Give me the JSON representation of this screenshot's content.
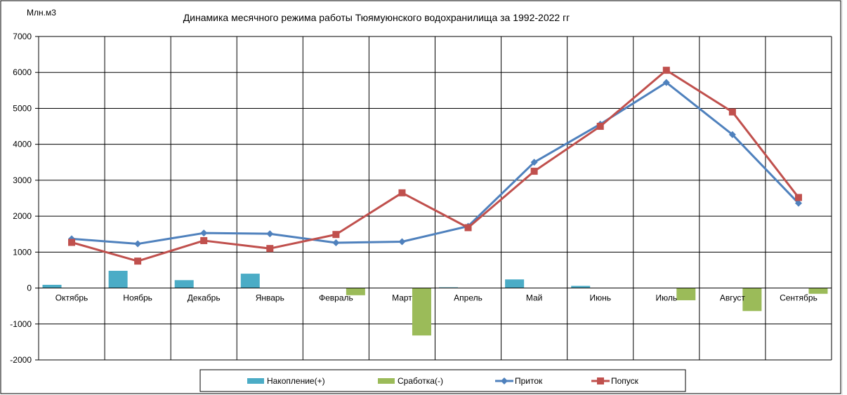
{
  "chart_data": {
    "type": "bar",
    "title": "Динамика месячного режима работы Тюямуюнского водохранилища за 1992-2022 гг",
    "ylabel": "Млн.м3",
    "xlabel": "",
    "ylim": [
      -2000,
      7000
    ],
    "yticks": [
      -2000,
      -1000,
      0,
      1000,
      2000,
      3000,
      4000,
      5000,
      6000,
      7000
    ],
    "grid": true,
    "legend_position": "bottom",
    "categories": [
      "Октябрь",
      "Ноябрь",
      "Декабрь",
      "Январь",
      "Февраль",
      "Март",
      "Апрель",
      "Май",
      "Июнь",
      "Июль",
      "Август",
      "Сентябрь"
    ],
    "series": [
      {
        "name": "Накопление(+)",
        "type": "bar",
        "color": "#4BACC6",
        "values": [
          90,
          480,
          220,
          400,
          0,
          0,
          20,
          240,
          60,
          0,
          0,
          0
        ]
      },
      {
        "name": "Сработка(-)",
        "type": "bar",
        "color": "#9BBB59",
        "values": [
          0,
          0,
          0,
          0,
          -200,
          -1320,
          0,
          0,
          0,
          -340,
          -640,
          -160
        ]
      },
      {
        "name": "Приток",
        "type": "line",
        "color": "#4F81BD",
        "marker": "diamond",
        "values": [
          1370,
          1230,
          1530,
          1510,
          1260,
          1290,
          1720,
          3500,
          4560,
          5720,
          4270,
          2360
        ]
      },
      {
        "name": "Попуск",
        "type": "line",
        "color": "#C0504D",
        "marker": "square",
        "values": [
          1270,
          750,
          1320,
          1100,
          1490,
          2650,
          1680,
          3250,
          4500,
          6060,
          4900,
          2520
        ]
      }
    ]
  }
}
